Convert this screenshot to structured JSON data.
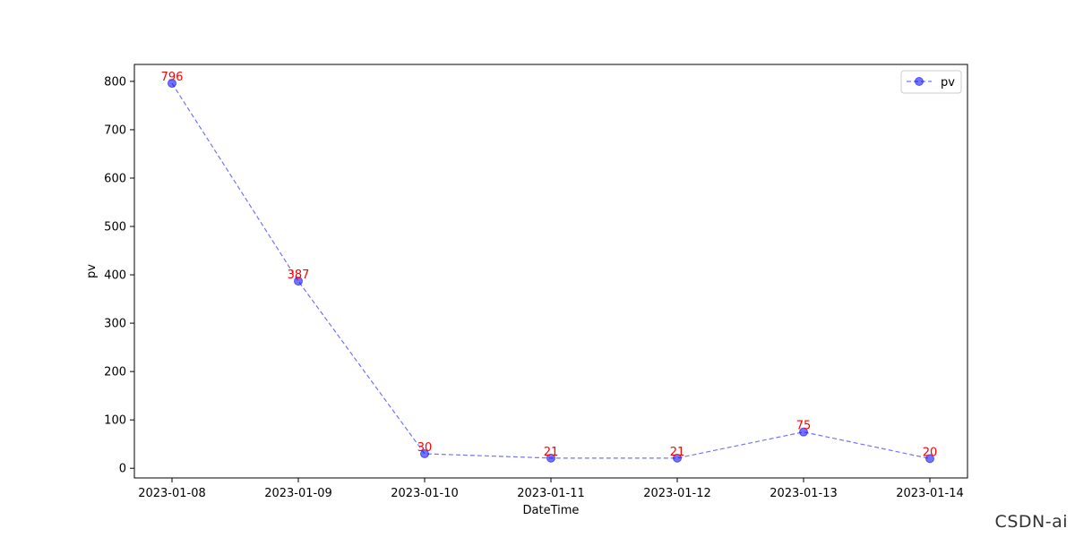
{
  "chart_data": {
    "type": "line",
    "categories": [
      "2023-01-08",
      "2023-01-09",
      "2023-01-10",
      "2023-01-11",
      "2023-01-12",
      "2023-01-13",
      "2023-01-14"
    ],
    "series": [
      {
        "name": "pv",
        "values": [
          796,
          387,
          30,
          21,
          21,
          75,
          20
        ]
      }
    ],
    "data_labels": [
      "796",
      "387",
      "30",
      "21",
      "21",
      "75",
      "20"
    ],
    "title": "",
    "xlabel": "DateTime",
    "ylabel": "pv",
    "ylim": [
      -20,
      835
    ],
    "yticks": [
      0,
      100,
      200,
      300,
      400,
      500,
      600,
      700,
      800
    ],
    "grid": false,
    "legend_position": "upper right",
    "line_style": "dashed",
    "marker": "circle",
    "series_color": "#0000ff",
    "label_color": "#ff0000"
  },
  "watermark": "CSDN-ai"
}
